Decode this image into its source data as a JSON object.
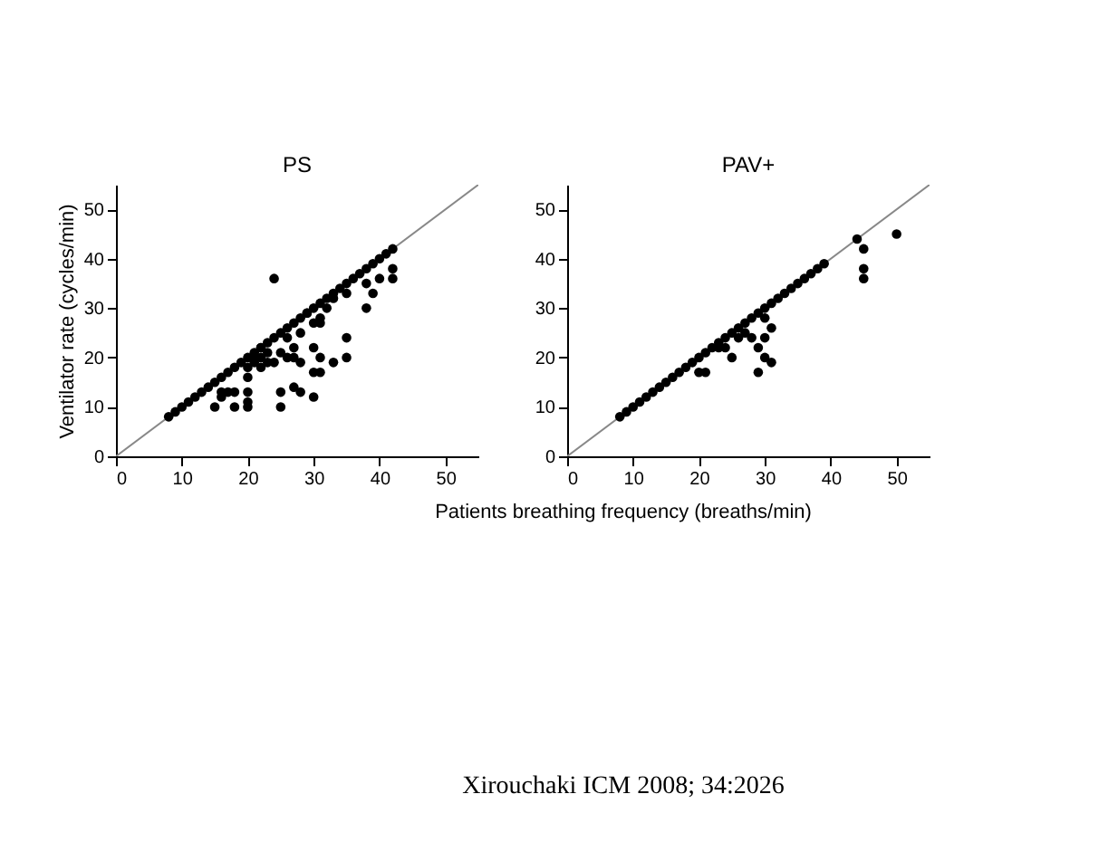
{
  "chart_data": [
    {
      "type": "scatter",
      "title": "PS",
      "xlabel": "Patients breathing frequency (breaths/min)",
      "ylabel": "Ventilator rate (cycles/min)",
      "xlim": [
        0,
        55
      ],
      "ylim": [
        0,
        55
      ],
      "xticks": [
        0,
        10,
        20,
        30,
        40,
        50
      ],
      "yticks": [
        0,
        10,
        20,
        30,
        40,
        50
      ],
      "grid": false,
      "marker": "circle",
      "annotations": [
        "Xirouchaki ICM 2008; 34:2026"
      ],
      "series": [
        {
          "type": "line",
          "marker": "none",
          "color": "#888888",
          "x": [
            0,
            55
          ],
          "values": [
            0,
            55
          ]
        },
        {
          "color": "#000000",
          "x": [
            8,
            9,
            10,
            11,
            12,
            13,
            14,
            15,
            16,
            17,
            18,
            19,
            20,
            21,
            22,
            23,
            24,
            25,
            26,
            27,
            28,
            29,
            30,
            31,
            32,
            33,
            34,
            35,
            36,
            37,
            38,
            39,
            40,
            41,
            42,
            24,
            42,
            42,
            40,
            38,
            39,
            38,
            35,
            33,
            32,
            31,
            30,
            31,
            35,
            35,
            33,
            31,
            30,
            30,
            28,
            28,
            27,
            27,
            25,
            25,
            25,
            24,
            23,
            22,
            22,
            21,
            20,
            20,
            20,
            20,
            20,
            18,
            18,
            17,
            16,
            15,
            16,
            26,
            27,
            28,
            29,
            26,
            23,
            22,
            21,
            30,
            31
          ],
          "values": [
            8,
            9,
            10,
            11,
            12,
            13,
            14,
            15,
            16,
            17,
            18,
            19,
            20,
            21,
            22,
            23,
            24,
            25,
            26,
            27,
            28,
            29,
            30,
            31,
            32,
            33,
            34,
            35,
            36,
            37,
            38,
            39,
            40,
            41,
            42,
            36,
            38,
            36,
            36,
            35,
            33,
            30,
            33,
            32,
            30,
            28,
            27,
            27,
            24,
            20,
            19,
            20,
            22,
            12,
            19,
            13,
            14,
            20,
            13,
            10,
            21,
            19,
            19,
            18,
            22,
            20,
            18,
            16,
            13,
            11,
            10,
            10,
            13,
            13,
            13,
            10,
            12,
            24,
            22,
            25,
            29,
            20,
            21,
            20,
            19,
            17,
            17
          ]
        }
      ]
    },
    {
      "type": "scatter",
      "title": "PAV+",
      "xlim": [
        0,
        55
      ],
      "ylim": [
        0,
        55
      ],
      "xticks": [
        0,
        10,
        20,
        30,
        40,
        50
      ],
      "yticks": [
        0,
        10,
        20,
        30,
        40,
        50
      ],
      "grid": false,
      "marker": "circle",
      "series": [
        {
          "type": "line",
          "marker": "none",
          "color": "#888888",
          "x": [
            0,
            55
          ],
          "values": [
            0,
            55
          ]
        },
        {
          "color": "#000000",
          "x": [
            8,
            9,
            10,
            11,
            12,
            13,
            14,
            15,
            16,
            17,
            18,
            19,
            20,
            21,
            22,
            23,
            24,
            25,
            26,
            27,
            28,
            29,
            30,
            31,
            32,
            33,
            34,
            35,
            36,
            37,
            38,
            39,
            44,
            45,
            45,
            45,
            20,
            21,
            25,
            29,
            29,
            30,
            31,
            30,
            31,
            30,
            28,
            26,
            27,
            24,
            23,
            50
          ],
          "values": [
            8,
            9,
            10,
            11,
            12,
            13,
            14,
            15,
            16,
            17,
            18,
            19,
            20,
            21,
            22,
            23,
            24,
            25,
            26,
            27,
            28,
            29,
            30,
            31,
            32,
            33,
            34,
            35,
            36,
            37,
            38,
            39,
            44,
            42,
            38,
            36,
            17,
            17,
            20,
            17,
            22,
            20,
            19,
            24,
            26,
            28,
            24,
            24,
            25,
            22,
            22,
            45
          ]
        }
      ]
    }
  ]
}
